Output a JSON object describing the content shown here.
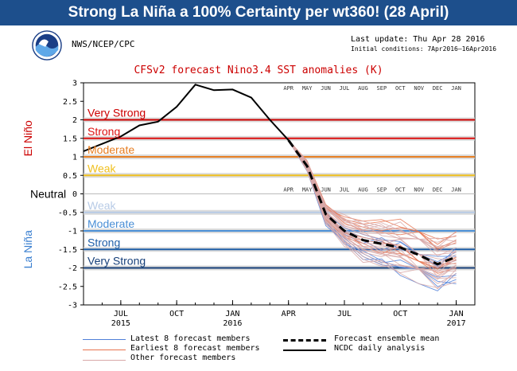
{
  "banner": {
    "title": "Strong La Niña a 100% Certainty per wt360! (28 April)"
  },
  "header": {
    "agency": "NWS/NCEP/CPC",
    "last_update": "Last update: Thu Apr 28 2016",
    "initial_conditions": "Initial conditions: 7Apr2016–16Apr2016",
    "plot_title": "CFSv2 forecast Nino3.4 SST anomalies (K)"
  },
  "colors": {
    "banner": "#1d4f8c",
    "very_strong_el_nino": "#cc0000",
    "strong_el_nino": "#dd1111",
    "moderate_el_nino": "#e67e22",
    "weak_el_nino": "#f0c020",
    "weak_la_nina": "#b8cbe6",
    "moderate_la_nina": "#4a8fd6",
    "strong_la_nina": "#1f5fa8",
    "very_strong_la_nina": "#17407a",
    "latest_members": "#4f7fd8",
    "earliest_members": "#e8734f",
    "other_members": "#d8a8a8"
  },
  "side_labels": {
    "el_nino": "El Niño",
    "neutral": "Neutral",
    "la_nina": "La Niña"
  },
  "chart_data": {
    "type": "line",
    "title": "CFSv2 forecast Nino3.4 SST anomalies (K)",
    "ylim": [
      -3,
      3
    ],
    "y_ticks": [
      3,
      2.5,
      2,
      1.5,
      1,
      0.5,
      0,
      -0.5,
      -1,
      -1.5,
      -2,
      -2.5,
      -3
    ],
    "y_tick_labels": [
      "3",
      "2.5",
      "2",
      "1.5",
      "1",
      "0.5",
      "0",
      "-0.5",
      "-1",
      "-1.5",
      "-2",
      "-2.5",
      "-3"
    ],
    "xlim": [
      "2015-05",
      "2017-02"
    ],
    "x_ticks": [
      {
        "month": "2015-07",
        "label": "JUL",
        "year": "2015"
      },
      {
        "month": "2015-10",
        "label": "OCT",
        "year": ""
      },
      {
        "month": "2016-01",
        "label": "JAN",
        "year": "2016"
      },
      {
        "month": "2016-04",
        "label": "APR",
        "year": ""
      },
      {
        "month": "2016-07",
        "label": "JUL",
        "year": ""
      },
      {
        "month": "2016-10",
        "label": "OCT",
        "year": ""
      },
      {
        "month": "2017-01",
        "label": "JAN",
        "year": "2017"
      }
    ],
    "forecast_months": [
      "APR",
      "MAY",
      "JUN",
      "JUL",
      "AUG",
      "SEP",
      "OCT",
      "NOV",
      "DEC",
      "JAN"
    ],
    "thresholds": [
      {
        "label": "Very Strong",
        "value": 2.0,
        "color": "#cc0000"
      },
      {
        "label": "Strong",
        "value": 1.5,
        "color": "#dd1111"
      },
      {
        "label": "Moderate",
        "value": 1.0,
        "color": "#e67e22"
      },
      {
        "label": "Weak",
        "value": 0.5,
        "color": "#f0c020"
      },
      {
        "label": "Weak",
        "value": -0.5,
        "color": "#b8cbe6"
      },
      {
        "label": "Moderate",
        "value": -1.0,
        "color": "#4a8fd6"
      },
      {
        "label": "Strong",
        "value": -1.5,
        "color": "#1f5fa8"
      },
      {
        "label": "Very Strong",
        "value": -2.0,
        "color": "#17407a"
      }
    ],
    "series": [
      {
        "name": "NCDC daily analysis",
        "style": "solid-black",
        "x": [
          "2015-05",
          "2015-06",
          "2015-07",
          "2015-08",
          "2015-09",
          "2015-10",
          "2015-11",
          "2015-12",
          "2016-01",
          "2016-02",
          "2016-03",
          "2016-04"
        ],
        "values": [
          1.15,
          1.35,
          1.55,
          1.85,
          1.95,
          2.35,
          2.95,
          2.8,
          2.82,
          2.6,
          2.0,
          1.45
        ]
      },
      {
        "name": "Forecast ensemble mean",
        "style": "dashed-black",
        "x": [
          "2016-04",
          "2016-05",
          "2016-06",
          "2016-07",
          "2016-08",
          "2016-09",
          "2016-10",
          "2016-11",
          "2016-12",
          "2017-01"
        ],
        "values": [
          1.45,
          0.75,
          -0.55,
          -1.0,
          -1.25,
          -1.35,
          -1.45,
          -1.65,
          -1.9,
          -1.7
        ]
      }
    ],
    "member_groups": [
      {
        "name": "Latest 8 forecast members",
        "color": "#4f7fd8",
        "count": 8
      },
      {
        "name": "Earliest 8 forecast members",
        "color": "#e8734f",
        "count": 8
      },
      {
        "name": "Other forecast members",
        "color": "#d8a8a8",
        "count": 24
      }
    ],
    "legend": {
      "placement": "bottom",
      "items": [
        {
          "label": "Latest 8 forecast members",
          "style": "blue"
        },
        {
          "label": "Earliest 8 forecast members",
          "style": "orange"
        },
        {
          "label": "Other forecast members",
          "style": "pink"
        },
        {
          "label": "Forecast ensemble mean",
          "style": "dashed"
        },
        {
          "label": "NCDC daily analysis",
          "style": "solid"
        }
      ]
    }
  }
}
